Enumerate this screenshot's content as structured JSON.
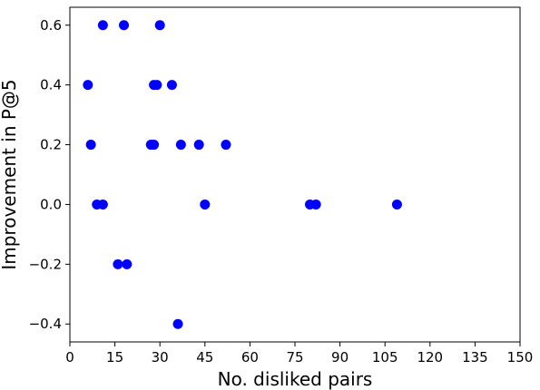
{
  "chart_data": {
    "type": "scatter",
    "title": "",
    "xlabel": "No. disliked pairs",
    "ylabel": "Improvement in P@5",
    "xlim": [
      0,
      150
    ],
    "ylim": [
      -0.46,
      0.66
    ],
    "xticks": [
      0,
      15,
      30,
      45,
      60,
      75,
      90,
      105,
      120,
      135,
      150
    ],
    "xtick_labels": [
      "0",
      "15",
      "30",
      "45",
      "60",
      "75",
      "90",
      "105",
      "120",
      "135",
      "150"
    ],
    "yticks": [
      -0.4,
      -0.2,
      0.0,
      0.2,
      0.4,
      0.6
    ],
    "ytick_labels": [
      "−0.4",
      "−0.2",
      "0.0",
      "0.2",
      "0.4",
      "0.6"
    ],
    "grid": false,
    "legend": "none",
    "marker_color": "#0000ff",
    "series": [
      {
        "points": [
          {
            "x": 11,
            "y": 0.6
          },
          {
            "x": 18,
            "y": 0.6
          },
          {
            "x": 30,
            "y": 0.6
          },
          {
            "x": 6,
            "y": 0.4
          },
          {
            "x": 28,
            "y": 0.4
          },
          {
            "x": 29,
            "y": 0.4
          },
          {
            "x": 34,
            "y": 0.4
          },
          {
            "x": 7,
            "y": 0.2
          },
          {
            "x": 27,
            "y": 0.2
          },
          {
            "x": 28,
            "y": 0.2
          },
          {
            "x": 37,
            "y": 0.2
          },
          {
            "x": 43,
            "y": 0.2
          },
          {
            "x": 52,
            "y": 0.2
          },
          {
            "x": 9,
            "y": 0.0
          },
          {
            "x": 11,
            "y": 0.0
          },
          {
            "x": 45,
            "y": 0.0
          },
          {
            "x": 80,
            "y": 0.0
          },
          {
            "x": 82,
            "y": 0.0
          },
          {
            "x": 109,
            "y": 0.0
          },
          {
            "x": 16,
            "y": -0.2
          },
          {
            "x": 19,
            "y": -0.2
          },
          {
            "x": 36,
            "y": -0.4
          }
        ]
      }
    ]
  }
}
